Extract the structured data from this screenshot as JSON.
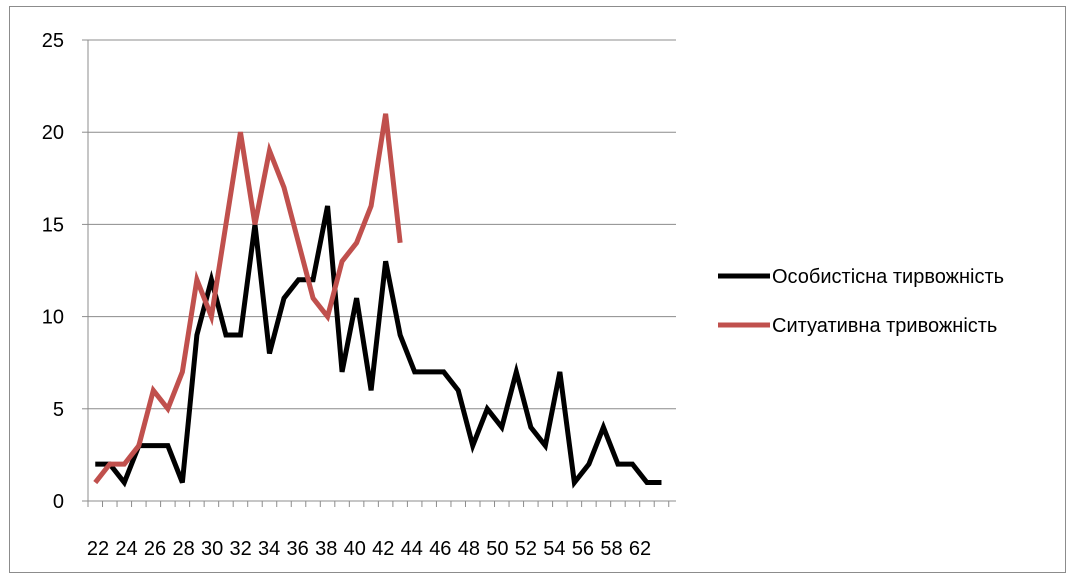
{
  "chart_data": {
    "type": "line",
    "title": "",
    "xlabel": "",
    "ylabel": "",
    "ylim": [
      0,
      25
    ],
    "yticks": [
      0,
      5,
      10,
      15,
      20,
      25
    ],
    "grid": "horizontal",
    "legend_position": "right",
    "x": [
      22,
      23,
      24,
      25,
      26,
      27,
      28,
      29,
      30,
      31,
      32,
      33,
      34,
      35,
      36,
      37,
      38,
      39,
      40,
      41,
      42,
      43,
      44,
      45,
      46,
      47,
      48,
      49,
      50,
      51,
      52,
      53,
      54,
      55,
      56,
      57,
      58,
      59,
      60,
      61,
      62
    ],
    "xtick_labels": [
      "22",
      "24",
      "26",
      "28",
      "30",
      "32",
      "34",
      "36",
      "38",
      "40",
      "42",
      "44",
      "46",
      "48",
      "50",
      "52",
      "54",
      "56",
      "58",
      "62"
    ],
    "series": [
      {
        "name": "Особистісна тирвожність",
        "color": "#000000",
        "values": [
          2,
          2,
          1,
          3,
          3,
          3,
          1,
          9,
          12,
          9,
          9,
          15,
          8,
          11,
          12,
          12,
          16,
          7,
          11,
          6,
          13,
          9,
          7,
          7,
          7,
          6,
          3,
          5,
          4,
          7,
          4,
          3,
          7,
          1,
          2,
          4,
          2,
          2,
          1,
          1,
          null
        ]
      },
      {
        "name": "Ситуативна тривожність",
        "color": "#c0504d",
        "values": [
          1,
          2,
          2,
          3,
          6,
          5,
          7,
          12,
          10,
          15,
          20,
          15,
          19,
          17,
          14,
          11,
          10,
          13,
          14,
          16,
          21,
          14,
          null,
          null,
          null,
          null,
          null,
          null,
          null,
          null,
          null,
          null,
          null,
          null,
          null,
          null,
          null,
          null,
          null,
          null,
          null
        ]
      }
    ]
  }
}
